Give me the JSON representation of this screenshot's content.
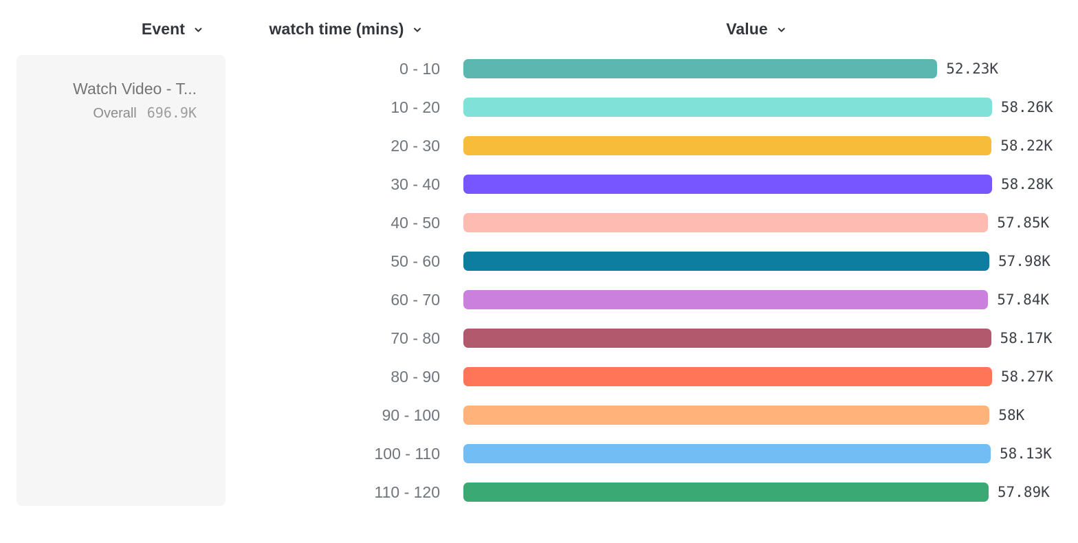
{
  "header": {
    "columns": [
      {
        "label": "Event"
      },
      {
        "label": "watch time (mins)"
      },
      {
        "label": "Value"
      }
    ]
  },
  "legend": {
    "event_name": "Watch Video - T...",
    "overall_label": "Overall",
    "overall_value": "696.9K"
  },
  "chart_data": {
    "type": "bar",
    "orientation": "horizontal",
    "title": "",
    "xlabel": "Value",
    "ylabel": "watch time (mins)",
    "xlim": [
      0,
      58280
    ],
    "grid": false,
    "legend_position": "left",
    "categories": [
      "0 - 10",
      "10 - 20",
      "20 - 30",
      "30 - 40",
      "40 - 50",
      "50 - 60",
      "60 - 70",
      "70 - 80",
      "80 - 90",
      "90 - 100",
      "100 - 110",
      "110 - 120"
    ],
    "values": [
      52230,
      58260,
      58220,
      58280,
      57850,
      57980,
      57840,
      58170,
      58270,
      58000,
      58130,
      57890
    ],
    "value_labels": [
      "52.23K",
      "58.26K",
      "58.22K",
      "58.28K",
      "57.85K",
      "57.98K",
      "57.84K",
      "58.17K",
      "58.27K",
      "58K",
      "58.13K",
      "57.89K"
    ],
    "colors": [
      "#5BB7AF",
      "#80E1D9",
      "#F8BC3B",
      "#7856FF",
      "#FEBBB2",
      "#0D7EA0",
      "#CA80DC",
      "#B2596E",
      "#FF7557",
      "#FFB27A",
      "#72BEF4",
      "#3BA974"
    ]
  }
}
